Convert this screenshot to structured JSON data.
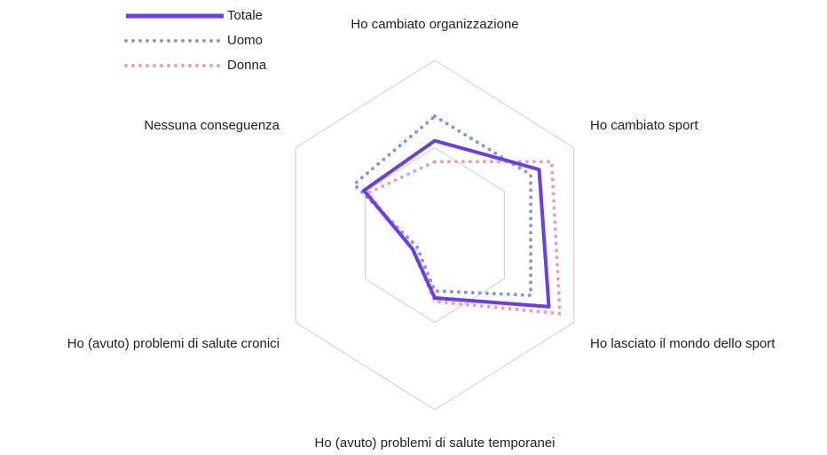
{
  "chart_data": {
    "type": "radar",
    "categories": [
      "Ho cambiato organizzazione",
      "Ho cambiato sport",
      "Ho lasciato il mondo dello sport",
      "Ho (avuto) problemi di salute temporanei",
      "Ho (avuto) problemi di salute cronici",
      "Nessuna conseguenza"
    ],
    "series": [
      {
        "name": "Totale",
        "color": "#6a3cf0",
        "style": "solid",
        "values": [
          54,
          75,
          82,
          36,
          16,
          51
        ]
      },
      {
        "name": "Uomo",
        "color": "#7b9be6",
        "style": "dotted",
        "values": [
          68,
          69,
          69,
          32,
          13,
          58
        ]
      },
      {
        "name": "Donna",
        "color": "#f29bb8",
        "style": "dotted",
        "values": [
          42,
          84,
          90,
          38,
          16,
          48
        ]
      }
    ],
    "ylim": [
      0,
      100
    ],
    "yticks": [
      50,
      100
    ],
    "grid": true,
    "legend": "top-left"
  }
}
